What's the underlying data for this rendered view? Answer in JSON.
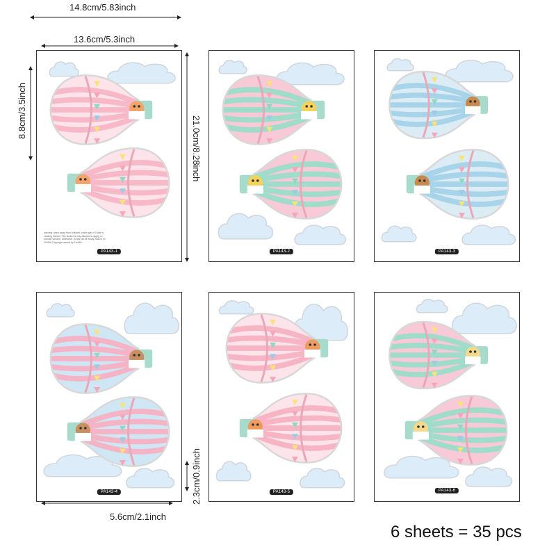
{
  "dimensions": {
    "sheet_width": "14.8cm/5.83inch",
    "sticker_width": "13.6cm/5.3inch",
    "sticker_height": "8.8cm/3.5inch",
    "sheet_height": "21.0cm/8.28inch",
    "cloud_width": "5.6cm/2.1inch",
    "cloud_height": "2.3cm/0.9inch"
  },
  "summary": "6 sheets = 35 pcs",
  "warning_text": "warning: keep away from children under age of 3 due to choking hazard. The sticker is only allowed to apply on smooth surface, otherwise, it may fall off easily. MADE IN CHINA Copyright owned by FunWe",
  "sheets": [
    {
      "code": "PA143-1",
      "color_a": "#f7b8c8",
      "color_b": "#fde4ea",
      "animal": "tiger",
      "animal_color": "#f2a46a"
    },
    {
      "code": "PA143-2",
      "color_a": "#9fdcc9",
      "color_b": "#f8c9d6",
      "animal": "giraffe",
      "animal_color": "#f5d35a"
    },
    {
      "code": "PA143-3",
      "color_a": "#a8d4ea",
      "color_b": "#dcecf5",
      "animal": "hedgehog",
      "animal_color": "#c88a4c"
    },
    {
      "code": "PA143-4",
      "color_a": "#f5b4c6",
      "color_b": "#cfe7f5",
      "animal": "bear",
      "animal_color": "#c89060"
    },
    {
      "code": "PA143-5",
      "color_a": "#f7b4c4",
      "color_b": "#fde3ea",
      "animal": "fox",
      "animal_color": "#ef9a5e"
    },
    {
      "code": "PA143-6",
      "color_a": "#9fdcc9",
      "color_b": "#f8c9d6",
      "animal": "rabbit",
      "animal_color": "#f5d98a"
    }
  ],
  "colors": {
    "cloud": "#dcecf8",
    "basket": "#a9dbcd",
    "flag_yellow": "#f8e27a",
    "flag_pink": "#f5a6bb",
    "flag_mint": "#8fd9c3",
    "flag_blue": "#9ccbe6"
  }
}
